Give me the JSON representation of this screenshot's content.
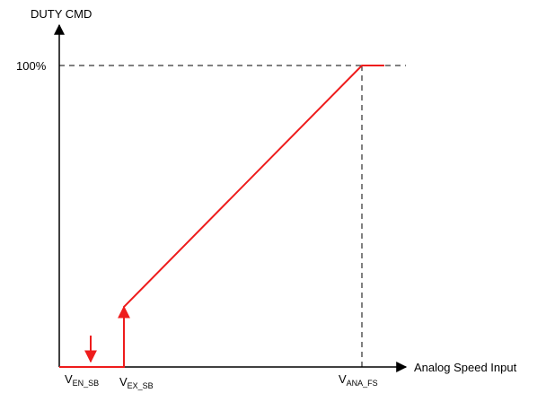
{
  "y_axis": {
    "label": "DUTY CMD",
    "tick_label": "100%"
  },
  "x_axis": {
    "label": "Analog Speed Input",
    "markers": [
      {
        "main": "V",
        "sub": "EN_SB"
      },
      {
        "main": "V",
        "sub": "EX_SB"
      },
      {
        "main": "V",
        "sub": "ANA_FS"
      }
    ]
  },
  "colors": {
    "curve": "#ee1c1c",
    "axis": "#000000",
    "guide": "#000000"
  }
}
